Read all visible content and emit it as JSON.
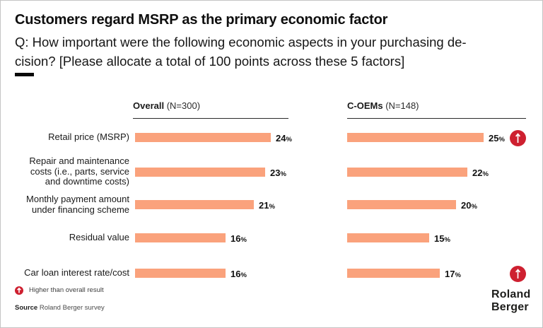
{
  "header": {
    "title": "Customers regard MSRP as the primary economic factor",
    "subtitle_lines": [
      "Q: How important were the following economic aspects in your purchasing de-",
      "cision? [Please allocate a total of 100 points across these 5 factors]"
    ]
  },
  "columns": [
    {
      "bold": "Overall",
      "rest": "(N=300)"
    },
    {
      "bold": "C-OEMs",
      "rest": "(N=148)"
    }
  ],
  "chart_data": {
    "type": "bar",
    "orientation": "horizontal",
    "unit": "%",
    "categories": [
      "Retail price (MSRP)",
      "Repair and maintenance costs (i.e., parts, service and downtime costs)",
      "Monthly payment amount under financing scheme",
      "Residual value",
      "Car loan interest rate/cost"
    ],
    "category_lines": [
      [
        "Retail price (MSRP)"
      ],
      [
        "Repair and maintenance",
        "costs (i.e., parts, service",
        "and downtime costs)"
      ],
      [
        "Monthly payment amount",
        "under financing scheme"
      ],
      [
        "Residual value"
      ],
      [
        "Car loan interest rate/cost"
      ]
    ],
    "series": [
      {
        "name": "Overall (N=300)",
        "values": [
          24,
          23,
          21,
          16,
          16
        ]
      },
      {
        "name": "C-OEMs (N=148)",
        "values": [
          25,
          22,
          20,
          15,
          17
        ],
        "higher_than_overall": [
          true,
          false,
          false,
          false,
          true
        ]
      }
    ],
    "bar_color": "#FAA27C",
    "marker_color": "#CE2030",
    "xlim": [
      0,
      25
    ],
    "grid": false,
    "legend_position": "bottom-left"
  },
  "legend": {
    "marker": "up-arrow-circle",
    "label": "Higher than overall result"
  },
  "source": {
    "bold": "Source",
    "rest": "Roland Berger survey"
  },
  "logo": {
    "line1": "Roland",
    "line2": "Berger"
  }
}
